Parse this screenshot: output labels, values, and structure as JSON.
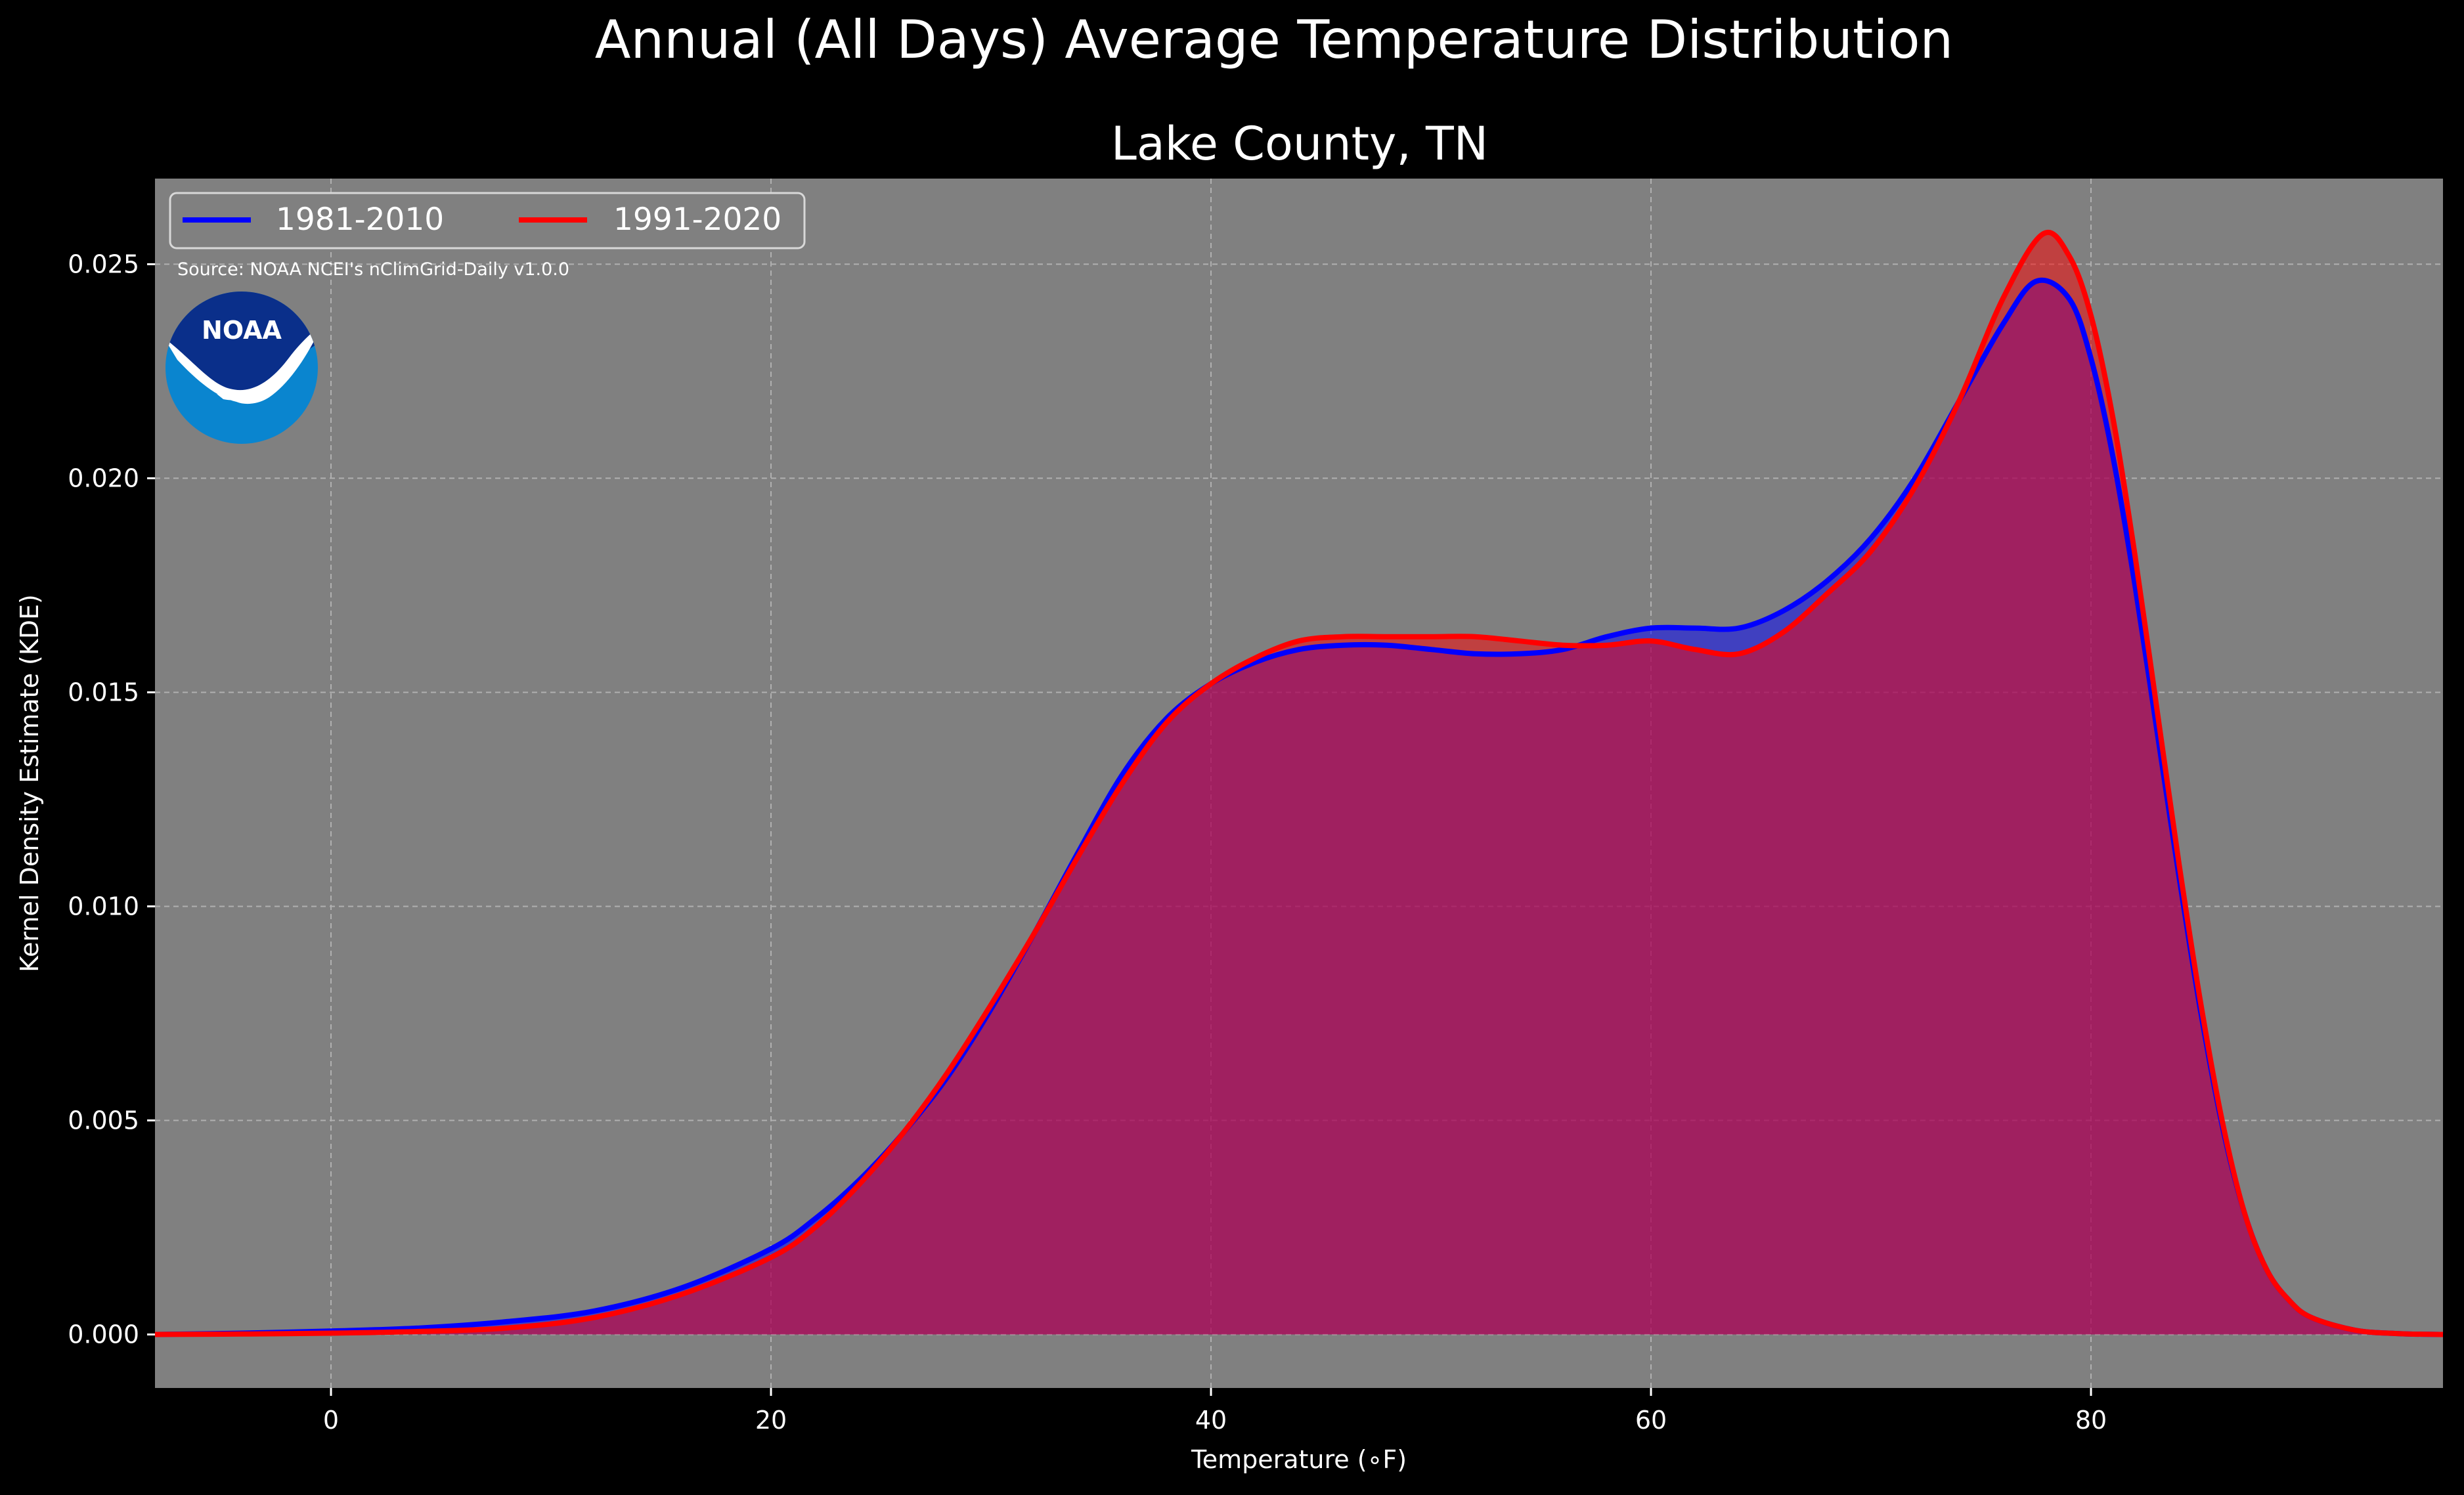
{
  "chart_data": {
    "type": "area",
    "suptitle": "Annual (All Days) Average Temperature Distribution",
    "title": "Lake County, TN",
    "xlabel": "Temperature (∘F)",
    "ylabel": "Kernel Density Estimate (KDE)",
    "xlim": [
      -8,
      96
    ],
    "ylim": [
      -0.00125,
      0.027
    ],
    "xticks": [
      0,
      20,
      40,
      60,
      80
    ],
    "xtick_labels": [
      "0",
      "20",
      "40",
      "60",
      "80"
    ],
    "yticks": [
      0.0,
      0.005,
      0.01,
      0.015,
      0.02,
      0.025
    ],
    "ytick_labels": [
      "0.000",
      "0.005",
      "0.010",
      "0.015",
      "0.020",
      "0.025"
    ],
    "grid": true,
    "legend_position": "top-left",
    "source": "Source: NOAA NCEI's nClimGrid-Daily v1.0.0",
    "logo_text": "NOAA",
    "colors": {
      "background": "#000000",
      "axes_face": "#808080",
      "series1": "#0000ff",
      "series2": "#ff0000"
    },
    "series": [
      {
        "name": "1981-2010",
        "color": "#0000ff",
        "x": [
          -8,
          -4,
          0,
          4,
          8,
          12,
          16,
          20,
          22,
          24,
          26,
          28,
          30,
          32,
          34,
          36,
          38,
          40,
          42,
          44,
          46,
          48,
          50,
          52,
          54,
          56,
          58,
          60,
          62,
          64,
          66,
          68,
          70,
          72,
          74,
          76,
          77.5,
          79,
          80,
          81,
          82,
          83,
          84,
          85,
          86,
          87,
          88,
          89,
          90,
          92,
          94,
          96
        ],
        "values": [
          0.0,
          3e-05,
          8e-05,
          0.00015,
          0.0003,
          0.00055,
          0.0011,
          0.002,
          0.0027,
          0.0036,
          0.0047,
          0.006,
          0.0076,
          0.0094,
          0.0113,
          0.0131,
          0.0144,
          0.0152,
          0.0157,
          0.016,
          0.0161,
          0.0161,
          0.016,
          0.0159,
          0.0159,
          0.016,
          0.0163,
          0.0165,
          0.0165,
          0.0165,
          0.0169,
          0.0176,
          0.0186,
          0.02,
          0.0218,
          0.0236,
          0.0246,
          0.0242,
          0.0228,
          0.0205,
          0.0175,
          0.0141,
          0.0107,
          0.0075,
          0.0048,
          0.0028,
          0.0015,
          0.0008,
          0.0004,
          0.0001,
          2e-05,
          0.0
        ]
      },
      {
        "name": "1991-2020",
        "color": "#ff0000",
        "x": [
          -8,
          -4,
          0,
          4,
          8,
          12,
          16,
          20,
          22,
          24,
          26,
          28,
          30,
          32,
          34,
          36,
          38,
          40,
          42,
          44,
          46,
          48,
          50,
          52,
          54,
          56,
          58,
          60,
          62,
          64,
          66,
          68,
          70,
          72,
          74,
          76,
          77.8,
          79,
          80,
          81,
          82,
          83,
          84,
          85,
          86,
          87,
          88,
          89,
          90,
          92,
          94,
          96
        ],
        "values": [
          0.0,
          1e-05,
          3e-05,
          7e-05,
          0.00015,
          0.0004,
          0.00095,
          0.0018,
          0.0025,
          0.0035,
          0.0047,
          0.0061,
          0.0077,
          0.0094,
          0.0112,
          0.0129,
          0.0143,
          0.0152,
          0.0158,
          0.0162,
          0.0163,
          0.0163,
          0.0163,
          0.0163,
          0.0162,
          0.0161,
          0.0161,
          0.0162,
          0.016,
          0.0159,
          0.0164,
          0.0173,
          0.0183,
          0.0198,
          0.0218,
          0.0242,
          0.0257,
          0.0252,
          0.0238,
          0.0214,
          0.0182,
          0.0146,
          0.011,
          0.0077,
          0.0049,
          0.0028,
          0.0015,
          0.0008,
          0.0004,
          0.0001,
          2e-05,
          0.0
        ]
      }
    ]
  }
}
